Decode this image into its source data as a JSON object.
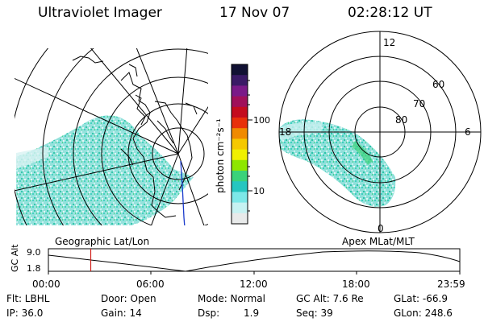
{
  "header": {
    "title": "Ultraviolet Imager",
    "date": "17 Nov 07",
    "time": "02:28:12 UT"
  },
  "colorbar": {
    "label": "photon cm⁻²s⁻¹",
    "ticks": [
      "100",
      "10"
    ],
    "colors": [
      "#111133",
      "#3a1a66",
      "#7a1a88",
      "#a0105a",
      "#c40c1e",
      "#e8300a",
      "#f08a00",
      "#f5c800",
      "#f0f000",
      "#8ee600",
      "#3ad27a",
      "#26c6c0",
      "#7de8e8",
      "#c6f2f2",
      "#e8eaea"
    ]
  },
  "geo_map": {
    "caption": "Geographic Lat/Lon"
  },
  "polar_plot": {
    "caption": "Apex MLat/MLT",
    "mlt_labels": [
      "12",
      "18",
      "6",
      "0"
    ],
    "lat_labels": [
      "60",
      "70",
      "80"
    ]
  },
  "altitude_plot": {
    "ylabel": "GC Alt",
    "yticks": [
      "9.0",
      "1.8"
    ],
    "time_ticks": [
      "00:00",
      "06:00",
      "12:00",
      "18:00",
      "23:59"
    ],
    "current_time_hours": 2.47
  },
  "info": {
    "filter": "Flt: LBHL",
    "door": "Door: Open",
    "mode": "Mode: Normal",
    "gc_alt": "GC Alt: 7.6 Re",
    "glat": "GLat: -66.9",
    "ip": "IP: 36.0",
    "gain": "Gain: 14",
    "dsp_label": "Dsp:",
    "dsp_value": "1.9",
    "seq": "Seq: 39",
    "glon": "GLon: 248.6"
  }
}
